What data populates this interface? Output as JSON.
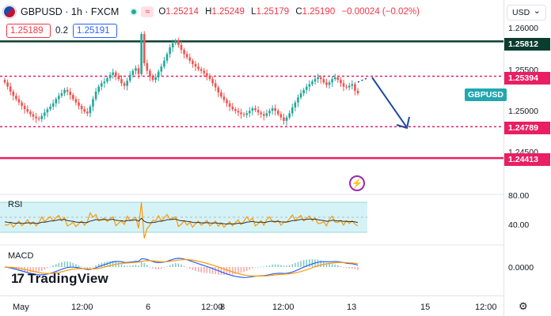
{
  "header": {
    "symbol": "GBPUSD · 1h · FXCM",
    "ohlc": {
      "o_label": "O",
      "o": "1.25214",
      "h_label": "H",
      "h": "1.25249",
      "l_label": "L",
      "l": "1.25179",
      "c_label": "C",
      "c": "1.25190",
      "change": "−0.00024 (−0.02%)"
    },
    "icon_badge": "≈"
  },
  "quotes": {
    "sell": "1.25189",
    "spread": "0.2",
    "buy": "1.25191"
  },
  "price_axis": {
    "currency": "USD",
    "ticks": [
      "1.26000",
      "1.25500",
      "1.25000",
      "1.24500"
    ],
    "levels": [
      {
        "value": "1.25812",
        "color": "#0b3d2e"
      },
      {
        "value": "1.25394",
        "color": "#e91e63"
      },
      {
        "value": "1.24789",
        "color": "#e91e63"
      },
      {
        "value": "1.24413",
        "color": "#e91e63"
      }
    ],
    "symbol_tag": "GBPUSD"
  },
  "rsi": {
    "label": "RSI",
    "ticks": [
      "80.00",
      "40.00"
    ]
  },
  "macd": {
    "label": "MACD",
    "ticks": [
      "0.0000"
    ]
  },
  "time_axis": {
    "labels": [
      "May",
      "12:00",
      "6",
      "12:00",
      "8",
      "12:00",
      "13",
      "15",
      "12:00"
    ]
  },
  "branding": {
    "name": "TradingView"
  },
  "colors": {
    "up": "#26a69a",
    "down": "#ef5350",
    "level_dark": "#0b3d2e",
    "level_pink": "#e91e63",
    "arrow": "#1e4aa0",
    "rsi_band": "#d5f3f7",
    "rsi_line": "#ff9800",
    "macd_line": "#2962ff",
    "signal_line": "#ff9800"
  },
  "chart_data": {
    "type": "candlestick",
    "symbol": "GBPUSD",
    "timeframe": "1h",
    "close": [
      1.2532,
      1.2527,
      1.2521,
      1.2516,
      1.2512,
      1.2508,
      1.2504,
      1.25,
      1.2497,
      1.2494,
      1.2491,
      1.2489,
      1.2488,
      1.2492,
      1.2496,
      1.25,
      1.2503,
      1.2507,
      1.2512,
      1.2516,
      1.2519,
      1.2523,
      1.2521,
      1.2517,
      1.2512,
      1.2508,
      1.2504,
      1.25,
      1.2497,
      1.2495,
      1.2503,
      1.2512,
      1.2521,
      1.2527,
      1.2531,
      1.2533,
      1.2537,
      1.2541,
      1.2544,
      1.254,
      1.2536,
      1.2531,
      1.2528,
      1.2534,
      1.2541,
      1.2546,
      1.2549,
      1.2542,
      1.259,
      1.2555,
      1.2546,
      1.2539,
      1.2535,
      1.2538,
      1.2545,
      1.2551,
      1.2558,
      1.2566,
      1.2574,
      1.2579,
      1.2582,
      1.2577,
      1.2571,
      1.2566,
      1.2562,
      1.2558,
      1.2554,
      1.2551,
      1.2548,
      1.2546,
      1.2543,
      1.254,
      1.2536,
      1.2531,
      1.2526,
      1.252,
      1.2515,
      1.2511,
      1.2507,
      1.2503,
      1.25,
      1.2498,
      1.2496,
      1.2494,
      1.2493,
      1.2495,
      1.2498,
      1.2501,
      1.2499,
      1.2496,
      1.2494,
      1.2492,
      1.2495,
      1.2498,
      1.2501,
      1.2498,
      1.2494,
      1.249,
      1.2486,
      1.249,
      1.2495,
      1.2502,
      1.2508,
      1.2514,
      1.2519,
      1.2523,
      1.2527,
      1.253,
      1.2533,
      1.2536,
      1.2538,
      1.2536,
      1.2532,
      1.2529,
      1.2532,
      1.2536,
      1.2538,
      1.2535,
      1.2531,
      1.2527,
      1.2526,
      1.2528,
      1.253,
      1.2522,
      1.2519
    ],
    "ylim": [
      1.2432,
      1.2608
    ],
    "levels": [
      1.25812,
      1.25394,
      1.24789,
      1.24413
    ],
    "rsi": {
      "ylim": [
        20,
        85
      ],
      "band": [
        30,
        70
      ]
    },
    "macd": {
      "zero": 0.0
    }
  }
}
